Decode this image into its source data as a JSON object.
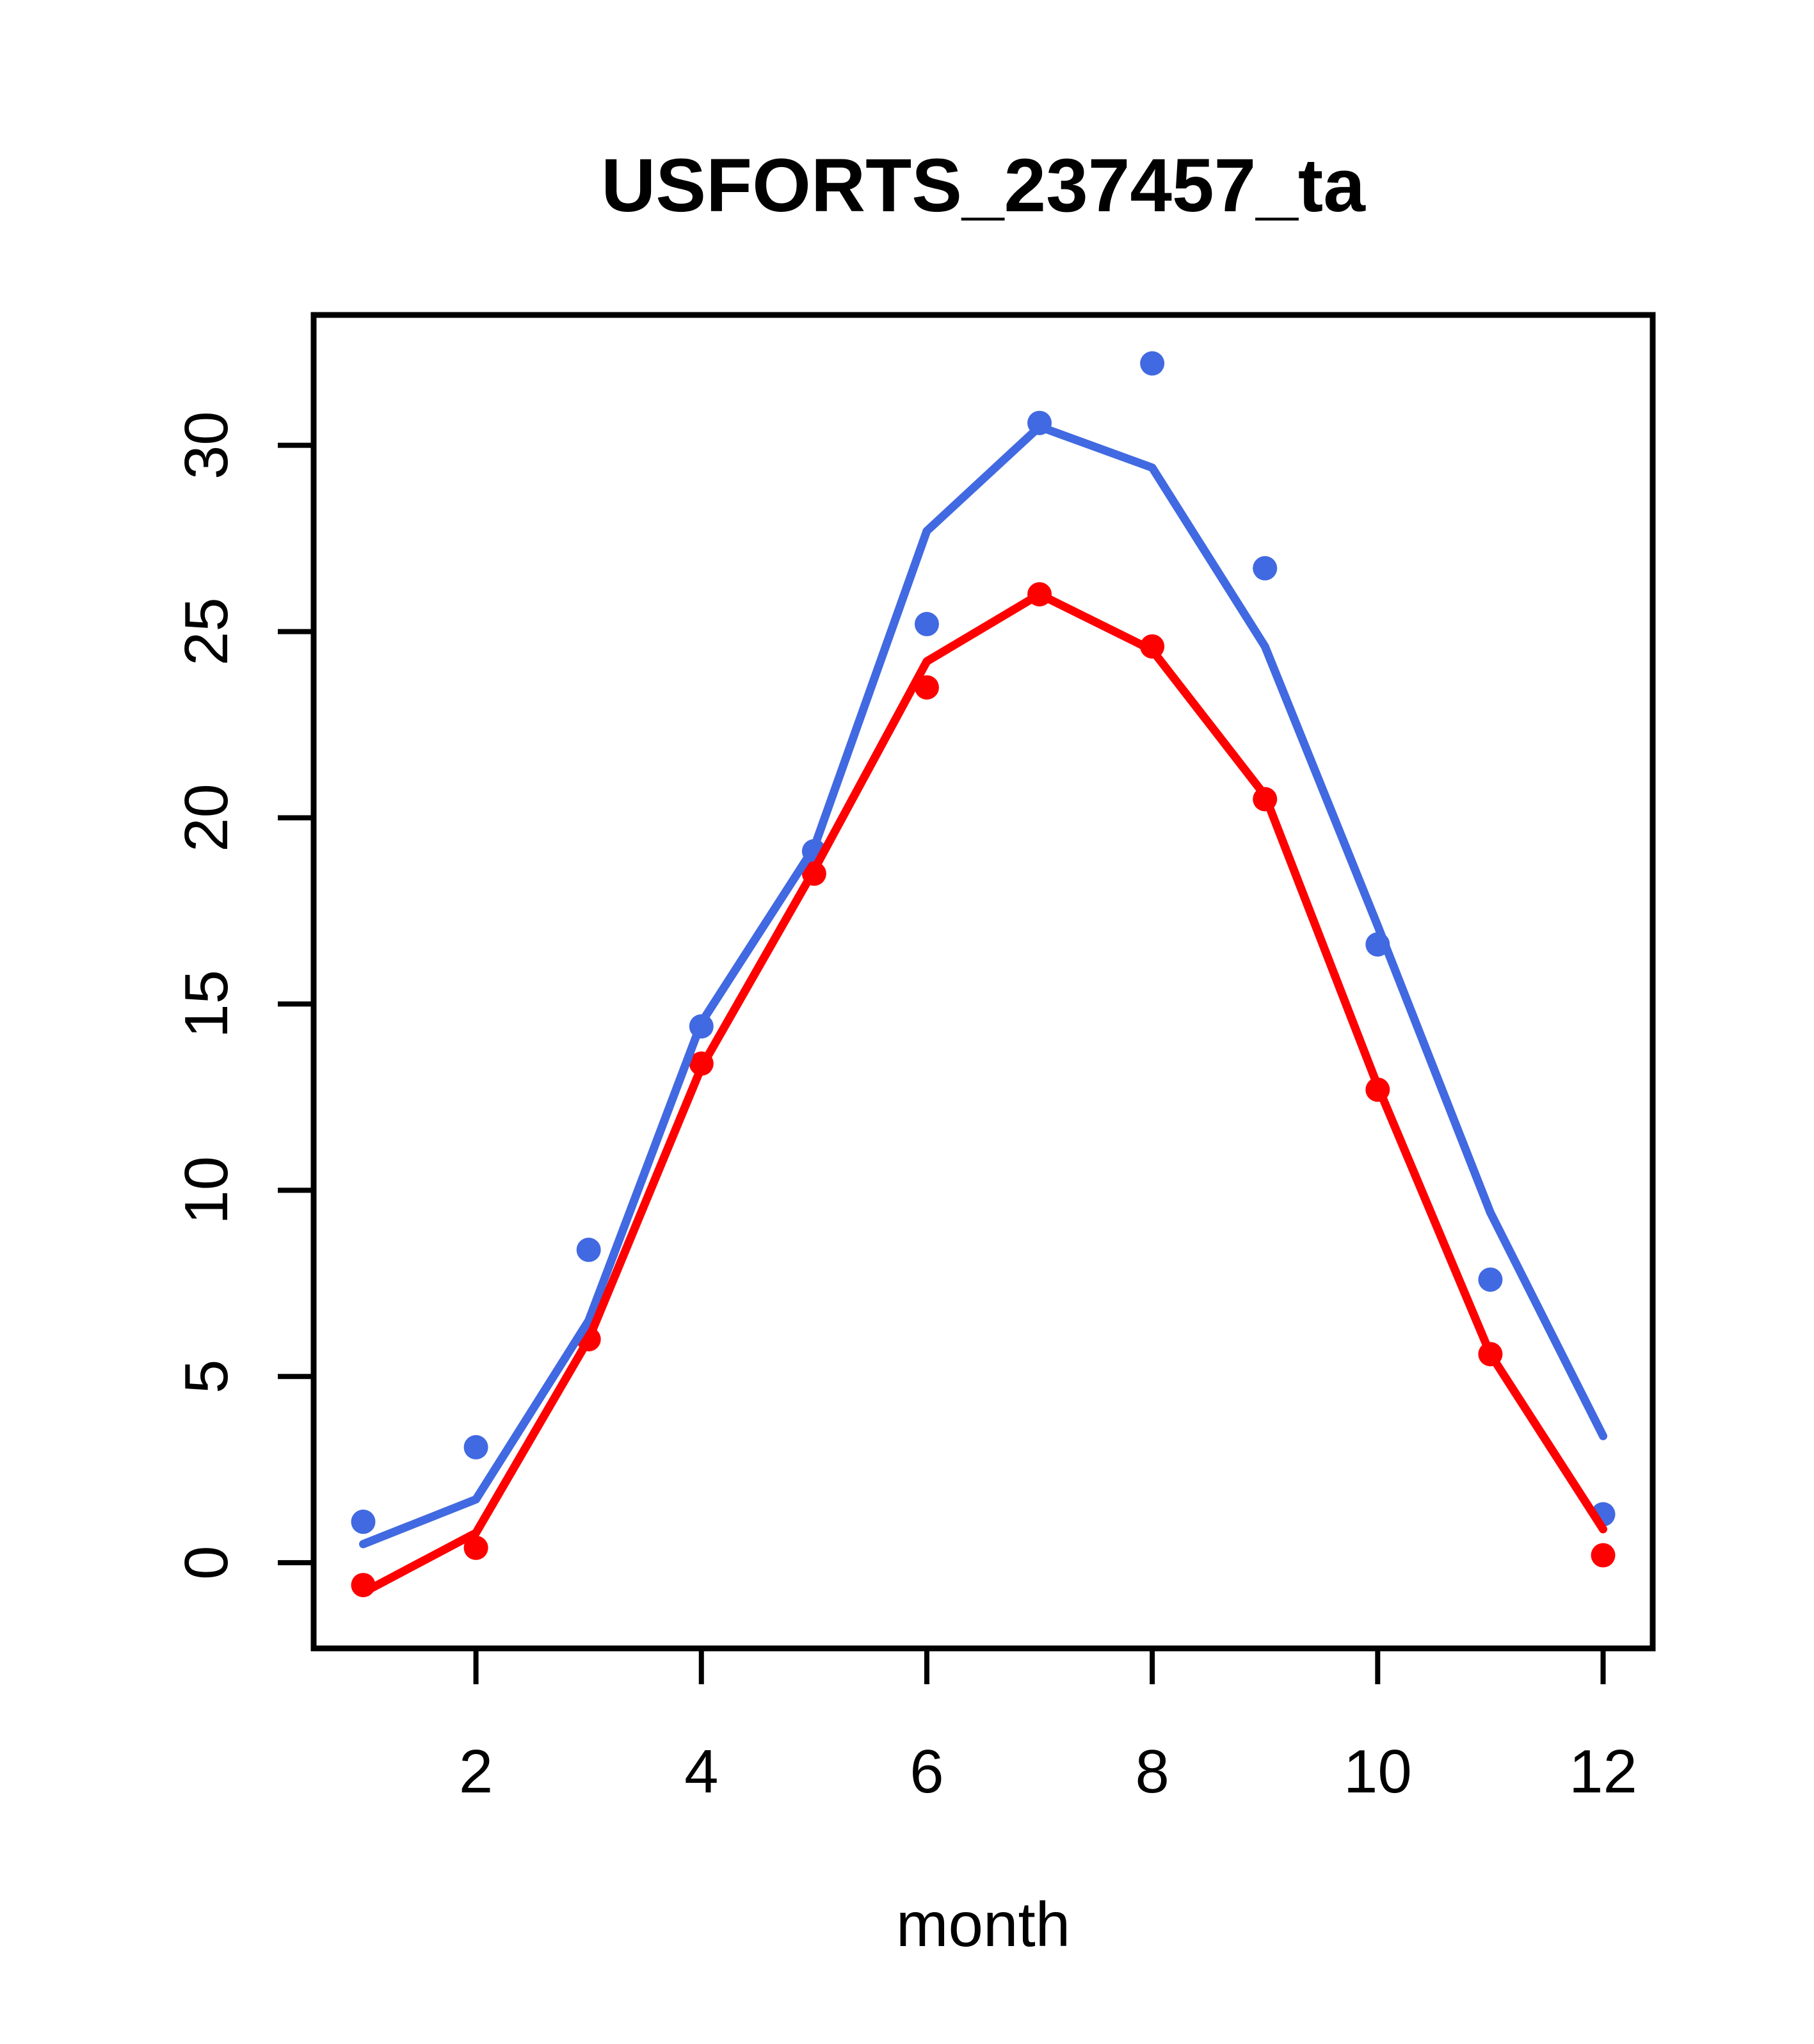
{
  "chart_data": {
    "type": "line",
    "title": "USFORTS_237457_ta",
    "xlabel": "month",
    "ylabel": "",
    "x": [
      1,
      2,
      3,
      4,
      5,
      6,
      7,
      8,
      9,
      10,
      11,
      12
    ],
    "series": [
      {
        "name": "blue-observed-points",
        "style": "scatter",
        "color": "#4169e1",
        "values": [
          1.1,
          3.1,
          8.4,
          14.4,
          19.1,
          25.2,
          30.6,
          32.2,
          26.7,
          16.6,
          7.6,
          1.3
        ]
      },
      {
        "name": "red-observed-points",
        "style": "scatter",
        "color": "#ff0000",
        "values": [
          -0.6,
          0.4,
          6.0,
          13.4,
          18.5,
          23.5,
          26.0,
          24.6,
          20.5,
          12.7,
          5.6,
          0.2
        ]
      },
      {
        "name": "blue-fitted-line",
        "style": "line",
        "color": "#4169e1",
        "values": [
          0.5,
          1.7,
          6.5,
          14.5,
          19.2,
          27.7,
          30.5,
          29.4,
          24.6,
          17.1,
          9.4,
          3.4
        ]
      },
      {
        "name": "red-fitted-line",
        "style": "line",
        "color": "#ff0000",
        "values": [
          -0.8,
          0.8,
          6.0,
          13.3,
          18.6,
          24.2,
          26.0,
          24.5,
          20.6,
          12.8,
          5.6,
          0.9
        ]
      }
    ],
    "xticks": [
      2,
      4,
      6,
      8,
      10,
      12
    ],
    "xtick_labels": [
      "2",
      "4",
      "6",
      "8",
      "10",
      "12"
    ],
    "yticks": [
      0,
      5,
      10,
      15,
      20,
      25,
      30
    ],
    "ytick_labels": [
      "0",
      "5",
      "10",
      "15",
      "20",
      "25",
      "30"
    ],
    "xlim": [
      0.56,
      12.44
    ],
    "ylim": [
      -2.3,
      33.5
    ],
    "grid": false,
    "legend": null,
    "axis_color": "#000000",
    "background_color": "#ffffff"
  }
}
